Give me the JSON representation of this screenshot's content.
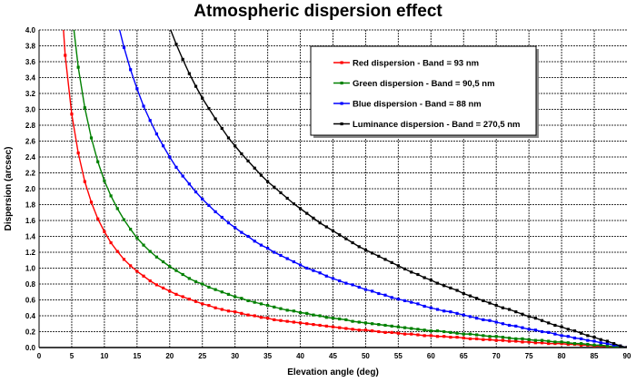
{
  "chart_data": {
    "type": "line",
    "title": "Atmospheric dispersion effect",
    "xlabel": "Elevation angle (deg)",
    "ylabel": "Dispersion (arcsec)",
    "xlim": [
      0,
      90
    ],
    "ylim": [
      0,
      4.0
    ],
    "xticks": [
      0,
      5,
      10,
      15,
      20,
      25,
      30,
      35,
      40,
      45,
      50,
      55,
      60,
      65,
      70,
      75,
      80,
      85,
      90
    ],
    "yticks": [
      "0.0",
      "0.2",
      "0.4",
      "0.6",
      "0.8",
      "1.0",
      "1.2",
      "1.4",
      "1.6",
      "1.8",
      "2.0",
      "2.2",
      "2.4",
      "2.6",
      "2.8",
      "3.0",
      "3.2",
      "3.4",
      "3.6",
      "3.8",
      "4.0"
    ],
    "grid": true,
    "legend_position": "top-right",
    "series": [
      {
        "name": "Red dispersion - Band = 93 nm",
        "color": "#ff0000",
        "x_start": 3,
        "x_step": 1,
        "values": [
          4.9,
          3.68,
          2.94,
          2.45,
          2.09,
          1.83,
          1.62,
          1.46,
          1.32,
          1.21,
          1.11,
          1.03,
          0.96,
          0.9,
          0.84,
          0.79,
          0.75,
          0.71,
          0.67,
          0.64,
          0.61,
          0.58,
          0.55,
          0.53,
          0.5,
          0.48,
          0.46,
          0.45,
          0.43,
          0.41,
          0.4,
          0.38,
          0.37,
          0.35,
          0.34,
          0.33,
          0.32,
          0.31,
          0.3,
          0.29,
          0.28,
          0.27,
          0.26,
          0.25,
          0.24,
          0.23,
          0.22,
          0.22,
          0.21,
          0.2,
          0.19,
          0.19,
          0.18,
          0.17,
          0.17,
          0.16,
          0.15,
          0.15,
          0.14,
          0.14,
          0.13,
          0.13,
          0.12,
          0.11,
          0.11,
          0.1,
          0.1,
          0.09,
          0.09,
          0.08,
          0.08,
          0.07,
          0.07,
          0.06,
          0.06,
          0.05,
          0.05,
          0.05,
          0.04,
          0.04,
          0.03,
          0.03,
          0.02,
          0.02,
          0.01,
          0.01,
          0.0,
          0.0
        ]
      },
      {
        "name": "Green dispersion - Band = 90,5 nm",
        "color": "#008000",
        "x_start": 5,
        "x_step": 1,
        "values": [
          4.24,
          3.53,
          3.02,
          2.64,
          2.34,
          2.1,
          1.91,
          1.75,
          1.61,
          1.49,
          1.38,
          1.29,
          1.21,
          1.14,
          1.08,
          1.02,
          0.97,
          0.92,
          0.87,
          0.83,
          0.8,
          0.76,
          0.73,
          0.7,
          0.67,
          0.64,
          0.62,
          0.59,
          0.57,
          0.55,
          0.53,
          0.51,
          0.49,
          0.47,
          0.46,
          0.44,
          0.43,
          0.41,
          0.4,
          0.38,
          0.37,
          0.36,
          0.35,
          0.33,
          0.32,
          0.31,
          0.3,
          0.29,
          0.28,
          0.27,
          0.26,
          0.25,
          0.24,
          0.23,
          0.22,
          0.21,
          0.21,
          0.2,
          0.19,
          0.18,
          0.17,
          0.17,
          0.16,
          0.15,
          0.14,
          0.14,
          0.13,
          0.12,
          0.11,
          0.11,
          0.1,
          0.09,
          0.09,
          0.08,
          0.07,
          0.07,
          0.06,
          0.05,
          0.05,
          0.04,
          0.03,
          0.03,
          0.02,
          0.01,
          0.01,
          0.0
        ]
      },
      {
        "name": "Blue dispersion - Band = 88 nm",
        "color": "#0000ff",
        "x_start": 12,
        "x_step": 1,
        "values": [
          4.11,
          3.78,
          3.5,
          3.26,
          3.04,
          2.86,
          2.69,
          2.54,
          2.4,
          2.27,
          2.16,
          2.06,
          1.96,
          1.87,
          1.79,
          1.71,
          1.64,
          1.57,
          1.51,
          1.45,
          1.4,
          1.34,
          1.29,
          1.25,
          1.2,
          1.16,
          1.12,
          1.08,
          1.04,
          1.0,
          0.97,
          0.94,
          0.9,
          0.87,
          0.84,
          0.81,
          0.79,
          0.76,
          0.73,
          0.71,
          0.68,
          0.66,
          0.63,
          0.61,
          0.59,
          0.57,
          0.55,
          0.52,
          0.5,
          0.48,
          0.46,
          0.45,
          0.43,
          0.41,
          0.39,
          0.37,
          0.35,
          0.34,
          0.32,
          0.3,
          0.28,
          0.27,
          0.25,
          0.23,
          0.22,
          0.2,
          0.19,
          0.17,
          0.15,
          0.14,
          0.12,
          0.11,
          0.09,
          0.08,
          0.06,
          0.05,
          0.03,
          0.02,
          0.0
        ]
      },
      {
        "name": "Luminance dispersion - Band = 270,5 nm",
        "color": "#000000",
        "x_start": 20,
        "x_step": 1,
        "values": [
          4.03,
          3.82,
          3.63,
          3.45,
          3.29,
          3.14,
          3.01,
          2.88,
          2.76,
          2.64,
          2.54,
          2.44,
          2.35,
          2.26,
          2.17,
          2.09,
          2.02,
          1.95,
          1.88,
          1.81,
          1.75,
          1.69,
          1.63,
          1.57,
          1.52,
          1.47,
          1.42,
          1.37,
          1.32,
          1.27,
          1.23,
          1.19,
          1.15,
          1.11,
          1.07,
          1.03,
          0.99,
          0.95,
          0.92,
          0.88,
          0.85,
          0.81,
          0.78,
          0.75,
          0.72,
          0.68,
          0.65,
          0.62,
          0.59,
          0.56,
          0.53,
          0.5,
          0.48,
          0.45,
          0.42,
          0.39,
          0.37,
          0.34,
          0.31,
          0.28,
          0.26,
          0.23,
          0.21,
          0.18,
          0.15,
          0.13,
          0.1,
          0.08,
          0.05,
          0.02,
          0.0
        ]
      }
    ]
  }
}
